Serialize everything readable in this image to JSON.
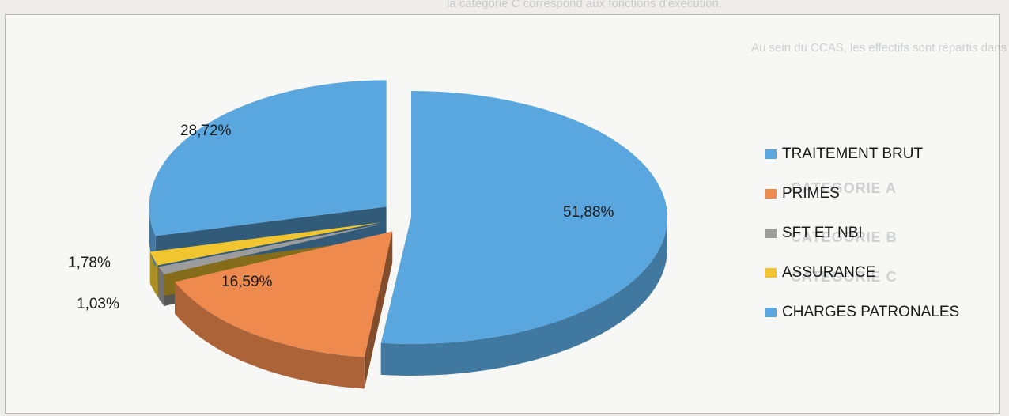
{
  "background_text": {
    "top": "la catégorie C correspond aux fonctions d'exécution.",
    "line": "Au sein du CCAS, les effectifs sont répartis dans les cadres d'emplois de la manière suivante",
    "categories": [
      "CATEGORIE A",
      "CATEGORIE B",
      "CATEGORIE C"
    ]
  },
  "chart_data": {
    "type": "pie",
    "style": "3d-exploded",
    "categories": [
      "TRAITEMENT BRUT",
      "PRIMES",
      "SFT ET NBI",
      "ASSURANCE",
      "CHARGES PATRONALES"
    ],
    "values": [
      51.88,
      16.59,
      1.03,
      1.78,
      28.72
    ],
    "labels": [
      "51,88%",
      "16,59%",
      "1,03%",
      "1,78%",
      "28,72%"
    ],
    "colors": [
      "#5aa6de",
      "#ef8a4e",
      "#9c9c9c",
      "#f0c530",
      "#5aa6de"
    ],
    "legend_position": "right"
  }
}
